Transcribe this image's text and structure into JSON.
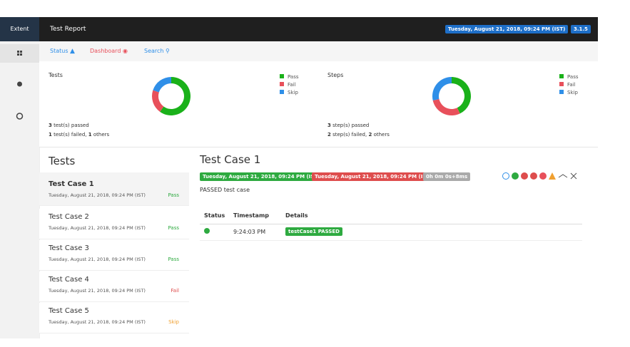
{
  "header": {
    "logo": "Extent",
    "title": "Test Report",
    "date": "Tuesday, August 21, 2018, 09:24 PM (IST)",
    "version": "3.1.5"
  },
  "nav": [
    "Status",
    "Dashboard",
    "Search"
  ],
  "dashboard": {
    "legend": [
      "Pass",
      "Fail",
      "Skip"
    ],
    "colors": [
      "#1ab11a",
      "#e8505b",
      "#2f8fe8"
    ],
    "tests": {
      "title": "Tests",
      "passed": 3,
      "failed": 1,
      "others": 1,
      "passed_label": "test(s) passed",
      "failed_label": "test(s) failed,",
      "others_label": "others"
    },
    "steps": {
      "title": "Steps",
      "passed": 3,
      "failed": 2,
      "others": 2,
      "passed_label": "step(s) passed",
      "failed_label": "step(s) failed,",
      "others_label": "others"
    }
  },
  "tests_list": {
    "title": "Tests",
    "items": [
      {
        "name": "Test Case 1",
        "time": "Tuesday, August 21, 2018, 09:24 PM (IST)",
        "status": "Pass"
      },
      {
        "name": "Test Case 2",
        "time": "Tuesday, August 21, 2018, 09:24 PM (IST)",
        "status": "Pass"
      },
      {
        "name": "Test Case 3",
        "time": "Tuesday, August 21, 2018, 09:24 PM (IST)",
        "status": "Pass"
      },
      {
        "name": "Test Case 4",
        "time": "Tuesday, August 21, 2018, 09:24 PM (IST)",
        "status": "Fail"
      },
      {
        "name": "Test Case 5",
        "time": "Tuesday, August 21, 2018, 09:24 PM (IST)",
        "status": "Skip"
      }
    ]
  },
  "detail": {
    "title": "Test Case 1",
    "start": "Tuesday, August 21, 2018, 09:24 PM (IST)",
    "end": "Tuesday, August 21, 2018, 09:24 PM (IST)",
    "duration": "0h 0m 0s+8ms",
    "description": "PASSED test case",
    "columns": [
      "Status",
      "Timestamp",
      "Details"
    ],
    "rows": [
      {
        "timestamp": "9:24:03 PM",
        "details": "testCase1 PASSED"
      }
    ]
  }
}
